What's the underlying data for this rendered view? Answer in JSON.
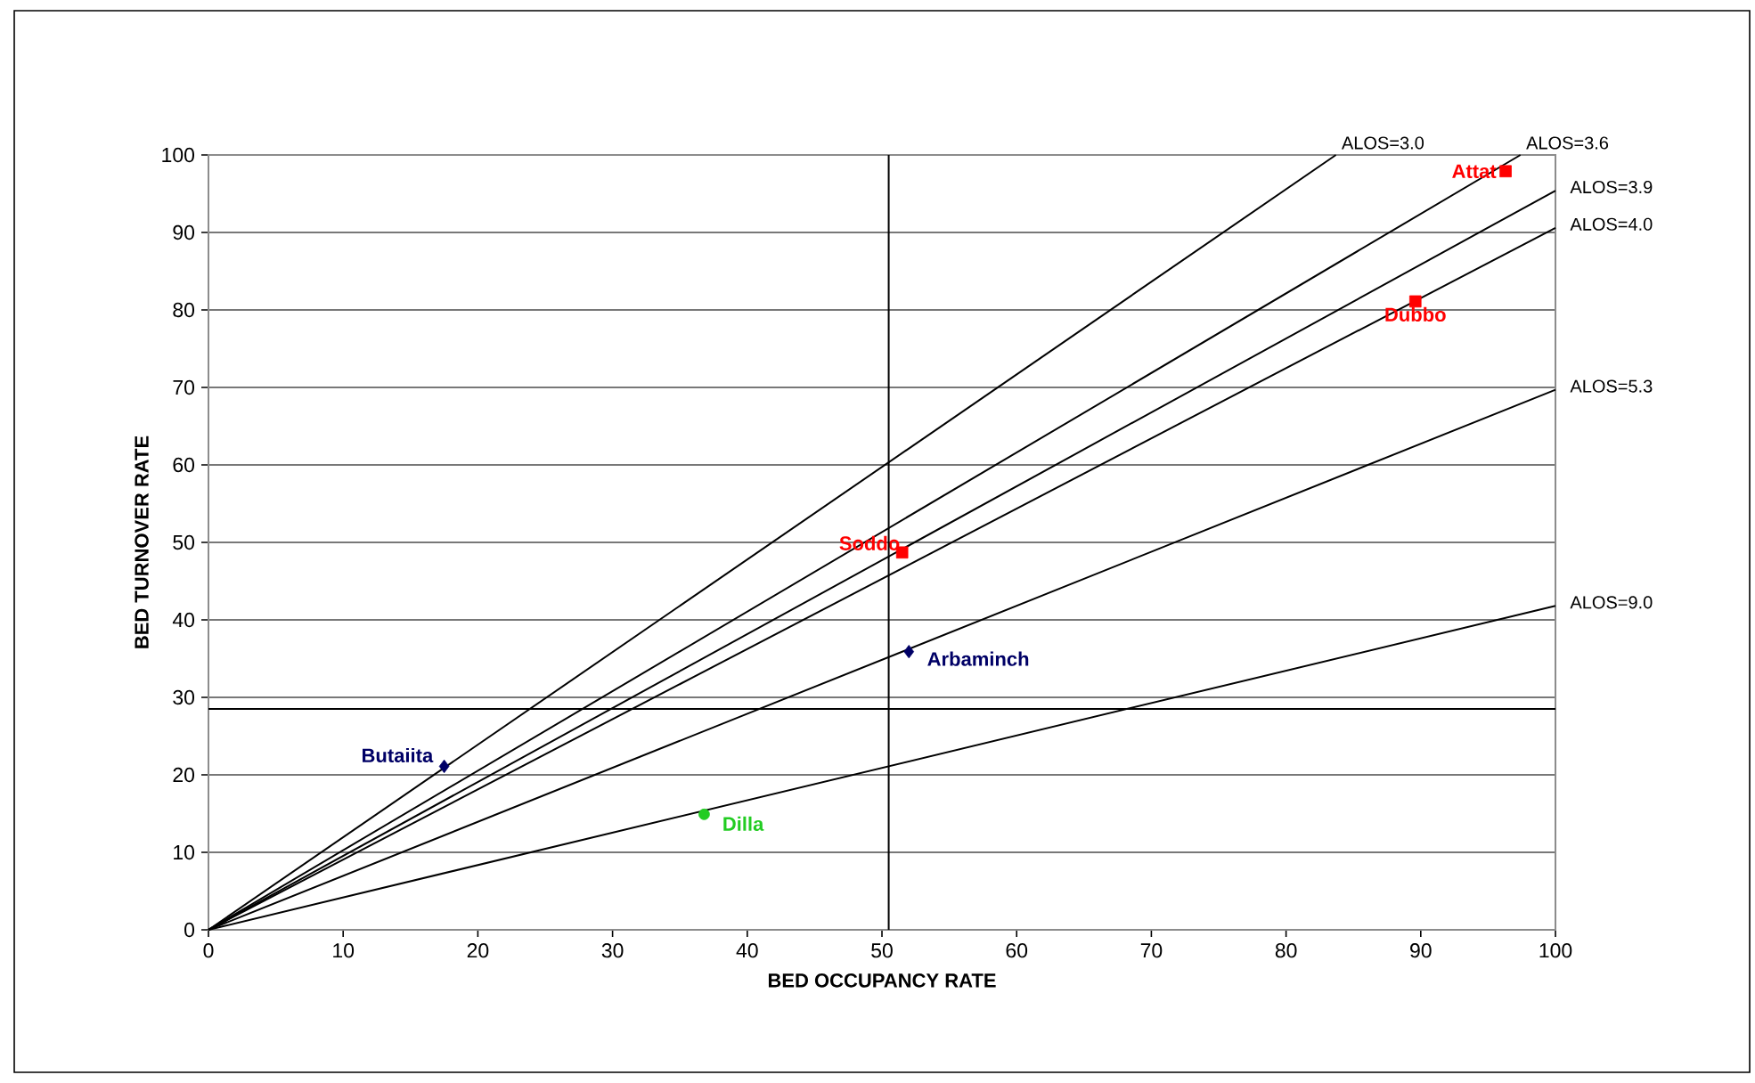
{
  "chart_data": {
    "type": "scatter",
    "xlabel": "BED OCCUPANCY RATE",
    "ylabel": "BED TURNOVER RATE",
    "xlim": [
      0,
      100
    ],
    "ylim": [
      0,
      100
    ],
    "xticks": [
      0,
      10,
      20,
      30,
      40,
      50,
      60,
      70,
      80,
      90,
      100
    ],
    "yticks": [
      0,
      10,
      20,
      30,
      40,
      50,
      60,
      70,
      80,
      90,
      100
    ],
    "grid": "y",
    "ref_lines": [
      {
        "axis": "x",
        "value": 50.5,
        "color": "#000000"
      },
      {
        "axis": "y",
        "value": 28.5,
        "color": "#000000"
      }
    ],
    "series": [
      {
        "name": "ALOS=3.0",
        "type": "line",
        "color": "#000000",
        "marker": "none",
        "x": [
          0,
          83.7
        ],
        "values": [
          0,
          100
        ]
      },
      {
        "name": "ALOS=3.6",
        "type": "line",
        "color": "#000000",
        "marker": "none",
        "x": [
          0,
          97.4
        ],
        "values": [
          0,
          100
        ]
      },
      {
        "name": "ALOS=3.9",
        "type": "line",
        "color": "#000000",
        "marker": "none",
        "x": [
          0,
          100
        ],
        "values": [
          0,
          95.4
        ]
      },
      {
        "name": "ALOS=4.0",
        "type": "line",
        "color": "#000000",
        "marker": "none",
        "x": [
          0,
          100
        ],
        "values": [
          0,
          90.6
        ]
      },
      {
        "name": "ALOS=5.3",
        "type": "line",
        "color": "#000000",
        "marker": "none",
        "x": [
          0,
          100
        ],
        "values": [
          0,
          69.7
        ]
      },
      {
        "name": "ALOS=9.0",
        "type": "line",
        "color": "#000000",
        "marker": "none",
        "x": [
          0,
          100
        ],
        "values": [
          0,
          41.8
        ]
      },
      {
        "name": "Attat",
        "type": "scatter",
        "color": "#ff0000",
        "marker": "square",
        "x": [
          96.3
        ],
        "values": [
          97.9
        ]
      },
      {
        "name": "Dubbo",
        "type": "scatter",
        "color": "#ff0000",
        "marker": "square",
        "x": [
          89.6
        ],
        "values": [
          81.1
        ]
      },
      {
        "name": "Soddo",
        "type": "scatter",
        "color": "#ff0000",
        "marker": "square",
        "x": [
          51.5
        ],
        "values": [
          48.7
        ]
      },
      {
        "name": "Arbaminch",
        "type": "scatter",
        "color": "#000066",
        "marker": "diamond",
        "x": [
          52.0
        ],
        "values": [
          35.9
        ]
      },
      {
        "name": "Butaiita",
        "type": "scatter",
        "color": "#000066",
        "marker": "diamond",
        "x": [
          17.5
        ],
        "values": [
          21.1
        ]
      },
      {
        "name": "Dilla",
        "type": "scatter",
        "color": "#22cc22",
        "marker": "circle",
        "x": [
          36.8
        ],
        "values": [
          14.9
        ]
      }
    ]
  }
}
